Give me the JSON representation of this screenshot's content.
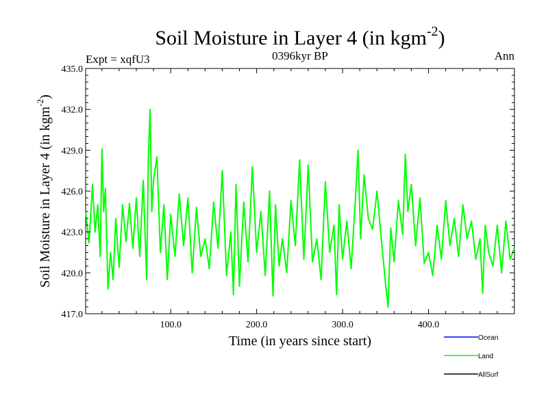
{
  "chart_data": {
    "type": "line",
    "title": "Soil Moisture in Layer 4 (in kgm",
    "title_superscript": "-2",
    "title_close": ")",
    "subtitle": "0396kyr BP",
    "left_label": "Expt = xqfU3",
    "right_label": "Ann",
    "xlabel": "Time (in years since start)",
    "ylabel": "Soil Moisture in Layer 4 (in kgm",
    "ylabel_superscript": "-2",
    "ylabel_close": ")",
    "xlim": [
      1,
      500
    ],
    "ylim": [
      417,
      435
    ],
    "x_ticks": [
      100,
      200,
      300,
      400
    ],
    "x_tick_labels": [
      "100.0",
      "200.0",
      "300.0",
      "400.0"
    ],
    "y_ticks": [
      417,
      420,
      423,
      426,
      429,
      432,
      435
    ],
    "y_tick_labels": [
      "417.0",
      "420.0",
      "423.0",
      "426.0",
      "429.0",
      "432.0",
      "435.0"
    ],
    "legend": [
      {
        "name": "Ocean",
        "color": "#0000ff"
      },
      {
        "name": "Land",
        "color": "#00ff00"
      },
      {
        "name": "AllSurf",
        "color": "#000000"
      }
    ],
    "series": [
      {
        "name": "Land",
        "color": "#00ff00",
        "x": [
          1,
          5,
          9,
          12,
          15,
          18,
          20,
          22,
          24,
          27,
          30,
          33,
          36,
          40,
          44,
          48,
          52,
          56,
          60,
          64,
          68,
          72,
          74,
          76,
          78,
          80,
          84,
          88,
          92,
          96,
          100,
          105,
          110,
          115,
          120,
          125,
          130,
          135,
          140,
          145,
          150,
          155,
          160,
          165,
          170,
          173,
          176,
          180,
          185,
          190,
          195,
          200,
          205,
          210,
          215,
          219,
          222,
          226,
          230,
          235,
          240,
          245,
          250,
          255,
          260,
          265,
          270,
          275,
          280,
          285,
          290,
          293,
          296,
          300,
          305,
          310,
          315,
          318,
          321,
          325,
          330,
          335,
          340,
          345,
          350,
          353,
          356,
          360,
          365,
          370,
          373,
          376,
          380,
          385,
          390,
          395,
          400,
          405,
          410,
          415,
          420,
          425,
          430,
          435,
          440,
          445,
          450,
          455,
          460,
          463,
          466,
          470,
          475,
          480,
          485,
          490,
          495,
          500
        ],
        "values": [
          424.5,
          422.2,
          426.5,
          423.0,
          425.0,
          421.2,
          429.1,
          424.5,
          426.2,
          418.8,
          421.5,
          419.5,
          424.0,
          420.4,
          425.0,
          422.3,
          425.1,
          421.8,
          425.5,
          421.2,
          426.8,
          419.5,
          428.5,
          432.0,
          424.5,
          426.8,
          428.5,
          421.5,
          425.0,
          419.5,
          424.3,
          421.2,
          425.8,
          422.0,
          425.5,
          420.0,
          424.8,
          421.2,
          422.5,
          420.3,
          425.2,
          421.8,
          427.5,
          419.8,
          423.0,
          418.4,
          426.5,
          419.0,
          425.2,
          420.8,
          427.8,
          421.5,
          424.5,
          419.8,
          426.0,
          418.3,
          425.0,
          420.5,
          422.5,
          420.0,
          425.3,
          422.0,
          428.3,
          421.0,
          427.9,
          420.8,
          422.5,
          419.5,
          426.7,
          421.5,
          423.5,
          418.4,
          425.0,
          421.0,
          423.8,
          420.3,
          425.5,
          429.0,
          422.5,
          427.2,
          424.0,
          423.2,
          426.0,
          422.5,
          419.2,
          417.5,
          423.3,
          420.8,
          425.3,
          422.8,
          428.7,
          424.5,
          426.5,
          422.0,
          425.5,
          420.7,
          421.5,
          419.8,
          423.5,
          421.0,
          425.3,
          422.0,
          424.0,
          421.2,
          425.0,
          422.5,
          423.8,
          421.0,
          422.5,
          418.5,
          423.5,
          421.5,
          420.5,
          423.5,
          420.0,
          423.8,
          421.0,
          421.8
        ]
      }
    ]
  }
}
